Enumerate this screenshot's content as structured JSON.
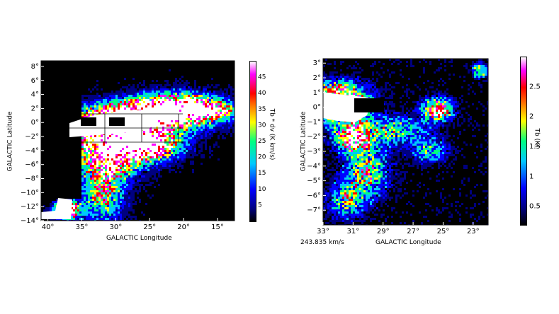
{
  "chart_data": [
    {
      "type": "heatmap",
      "title": "",
      "xlabel": "GALACTIC Longitude",
      "ylabel": "GALACTIC Latitude",
      "x_ticks": [
        "40°",
        "35°",
        "30°",
        "25°",
        "20°",
        "15°"
      ],
      "x_tick_values": [
        40,
        35,
        30,
        25,
        20,
        15
      ],
      "y_ticks": [
        "8°",
        "6°",
        "4°",
        "2°",
        "0°",
        "−2°",
        "−4°",
        "−6°",
        "−8°",
        "−10°",
        "−12°",
        "−14°"
      ],
      "y_tick_values": [
        8,
        6,
        4,
        2,
        0,
        -2,
        -4,
        -6,
        -8,
        -10,
        -12,
        -14
      ],
      "xlim": [
        41,
        12.5
      ],
      "ylim": [
        -14,
        8.8
      ],
      "colorbar": {
        "label": "Tb * dv  (K km/s)",
        "ticks": [
          "5",
          "10",
          "15",
          "20",
          "25",
          "30",
          "35",
          "40",
          "45"
        ],
        "tick_values": [
          5,
          10,
          15,
          20,
          25,
          30,
          35,
          40,
          45
        ],
        "range": [
          0,
          50
        ]
      },
      "grid": true
    },
    {
      "type": "heatmap",
      "title": "",
      "xlabel": "GALACTIC Longitude",
      "ylabel": "GALACTIC Latitude",
      "annotation": "243.835 km/s",
      "x_ticks": [
        "33°",
        "31°",
        "29°",
        "27°",
        "25°",
        "23°"
      ],
      "x_tick_values": [
        33,
        31,
        29,
        27,
        25,
        23
      ],
      "y_ticks": [
        "3°",
        "2°",
        "1°",
        "0°",
        "−1°",
        "−2°",
        "−3°",
        "−4°",
        "−5°",
        "−6°",
        "−7°"
      ],
      "y_tick_values": [
        3,
        2,
        1,
        0,
        -1,
        -2,
        -3,
        -4,
        -5,
        -6,
        -7
      ],
      "xlim": [
        33,
        22
      ],
      "ylim": [
        -8,
        3.3
      ],
      "colorbar": {
        "label": "Tb  (K)",
        "ticks": [
          "0.5",
          "1",
          "1.5",
          "2",
          "2.5"
        ],
        "tick_values": [
          0.5,
          1,
          1.5,
          2,
          2.5
        ],
        "range": [
          0.2,
          3
        ]
      },
      "grid": false
    }
  ],
  "colors": {
    "background": "#000000",
    "colormap": [
      "#000000",
      "#000080",
      "#0000ff",
      "#00c8ff",
      "#00ff80",
      "#ffff00",
      "#ff0000",
      "#ff00ff",
      "#ffffff"
    ]
  }
}
